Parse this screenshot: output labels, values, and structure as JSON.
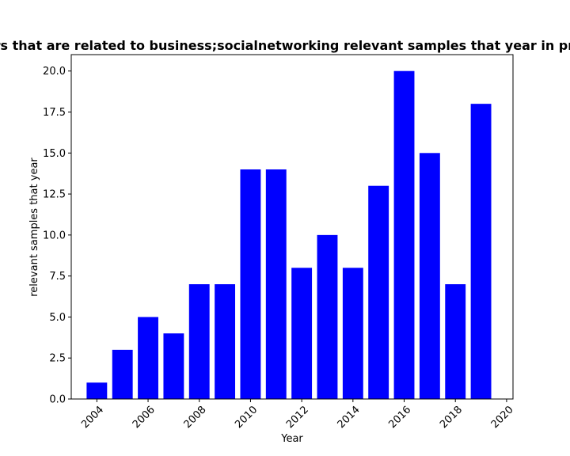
{
  "chart_data": {
    "type": "bar",
    "title": "Papers that are related to business;socialnetworking relevant samples that year in privacy",
    "xlabel": "Year",
    "ylabel": "relevant samples that year",
    "x": [
      2004,
      2005,
      2006,
      2007,
      2008,
      2009,
      2010,
      2011,
      2012,
      2013,
      2014,
      2015,
      2016,
      2017,
      2018,
      2019
    ],
    "values": [
      1,
      3,
      5,
      4,
      7,
      7,
      14,
      14,
      8,
      10,
      8,
      13,
      20,
      15,
      7,
      18
    ],
    "xlim": [
      2003.0,
      2020.25
    ],
    "ylim": [
      0,
      21
    ],
    "xticks": [
      2004,
      2006,
      2008,
      2010,
      2012,
      2014,
      2016,
      2018,
      2020
    ],
    "yticks": [
      0.0,
      2.5,
      5.0,
      7.5,
      10.0,
      12.5,
      15.0,
      17.5,
      20.0
    ],
    "xtick_rotation_deg": 45,
    "bar_color": "#0000ff",
    "grid": false,
    "legend": "none"
  }
}
